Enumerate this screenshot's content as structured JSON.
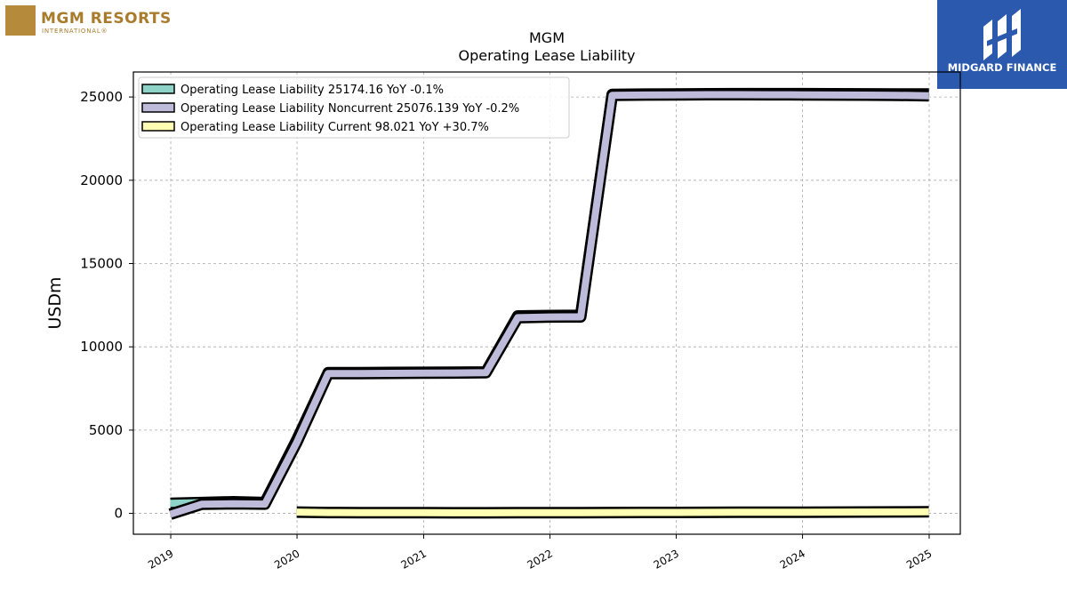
{
  "logos": {
    "left_brand": "MGM RESORTS",
    "left_sub": "INTERNATIONAL®",
    "right_brand": "MIDGARD FINANCE"
  },
  "chart_data": {
    "type": "line",
    "title": "MGM",
    "subtitle": "Operating Lease Liability",
    "ylabel": "USDm",
    "xlabel": "",
    "ylim": [
      -1250,
      26500
    ],
    "xlim": [
      "2018-09-15",
      "2025-04-01"
    ],
    "yticks": [
      0,
      5000,
      10000,
      15000,
      20000,
      25000
    ],
    "xticks": [
      "2019",
      "2020",
      "2021",
      "2022",
      "2023",
      "2024",
      "2025"
    ],
    "grid": true,
    "legend_position": "top-left",
    "series": [
      {
        "name": "Operating Lease Liability",
        "legend": "Operating Lease Liability  25174.16 YoY -0.1%",
        "color": "#8dd3c7",
        "x": [
          "2018-12-31",
          "2019-03-31",
          "2019-06-30",
          "2019-09-30",
          "2019-12-31",
          "2020-03-31",
          "2020-06-30",
          "2020-09-30",
          "2020-12-31",
          "2021-03-31",
          "2021-06-30",
          "2021-09-30",
          "2021-12-31",
          "2022-03-31",
          "2022-06-30",
          "2022-09-30",
          "2022-12-31",
          "2023-03-31",
          "2023-06-30",
          "2023-09-30",
          "2023-12-31",
          "2024-03-31",
          "2024-06-30",
          "2024-09-30",
          "2024-12-31"
        ],
        "values": [
          600,
          650,
          700,
          650,
          4400,
          8450,
          8450,
          8460,
          8470,
          8480,
          8490,
          11850,
          11880,
          11890,
          25150,
          25170,
          25180,
          25190,
          25200,
          25200,
          25200,
          25190,
          25185,
          25180,
          25174.16
        ]
      },
      {
        "name": "Operating Lease Liability Noncurrent",
        "legend": "Operating Lease Liability Noncurrent  25076.139 YoY -0.2%",
        "color": "#bebada",
        "x": [
          "2018-12-31",
          "2019-03-31",
          "2019-06-30",
          "2019-09-30",
          "2019-12-31",
          "2020-03-31",
          "2020-06-30",
          "2020-09-30",
          "2020-12-31",
          "2021-03-31",
          "2021-06-30",
          "2021-09-30",
          "2021-12-31",
          "2022-03-31",
          "2022-06-30",
          "2022-09-30",
          "2022-12-31",
          "2023-03-31",
          "2023-06-30",
          "2023-09-30",
          "2023-12-31",
          "2024-03-31",
          "2024-06-30",
          "2024-09-30",
          "2024-12-31"
        ],
        "values": [
          -50,
          550,
          580,
          560,
          4250,
          8400,
          8400,
          8410,
          8420,
          8430,
          8450,
          11750,
          11790,
          11800,
          25100,
          25120,
          25130,
          25140,
          25140,
          25135,
          25130,
          25120,
          25110,
          25100,
          25076.139
        ]
      },
      {
        "name": "Operating Lease Liability Current",
        "legend": "Operating Lease Liability Current  98.021 YoY +30.7%",
        "color": "#ffffb3",
        "x": [
          "2019-12-31",
          "2020-03-31",
          "2020-06-30",
          "2020-09-30",
          "2020-12-31",
          "2021-03-31",
          "2021-06-30",
          "2021-09-30",
          "2021-12-31",
          "2022-03-31",
          "2022-06-30",
          "2022-09-30",
          "2022-12-31",
          "2023-03-31",
          "2023-06-30",
          "2023-09-30",
          "2023-12-31",
          "2024-03-31",
          "2024-06-30",
          "2024-09-30",
          "2024-12-31"
        ],
        "values": [
          80,
          50,
          45,
          40,
          40,
          35,
          35,
          40,
          40,
          45,
          50,
          55,
          60,
          65,
          70,
          72,
          75,
          80,
          85,
          90,
          98.021
        ]
      }
    ]
  }
}
